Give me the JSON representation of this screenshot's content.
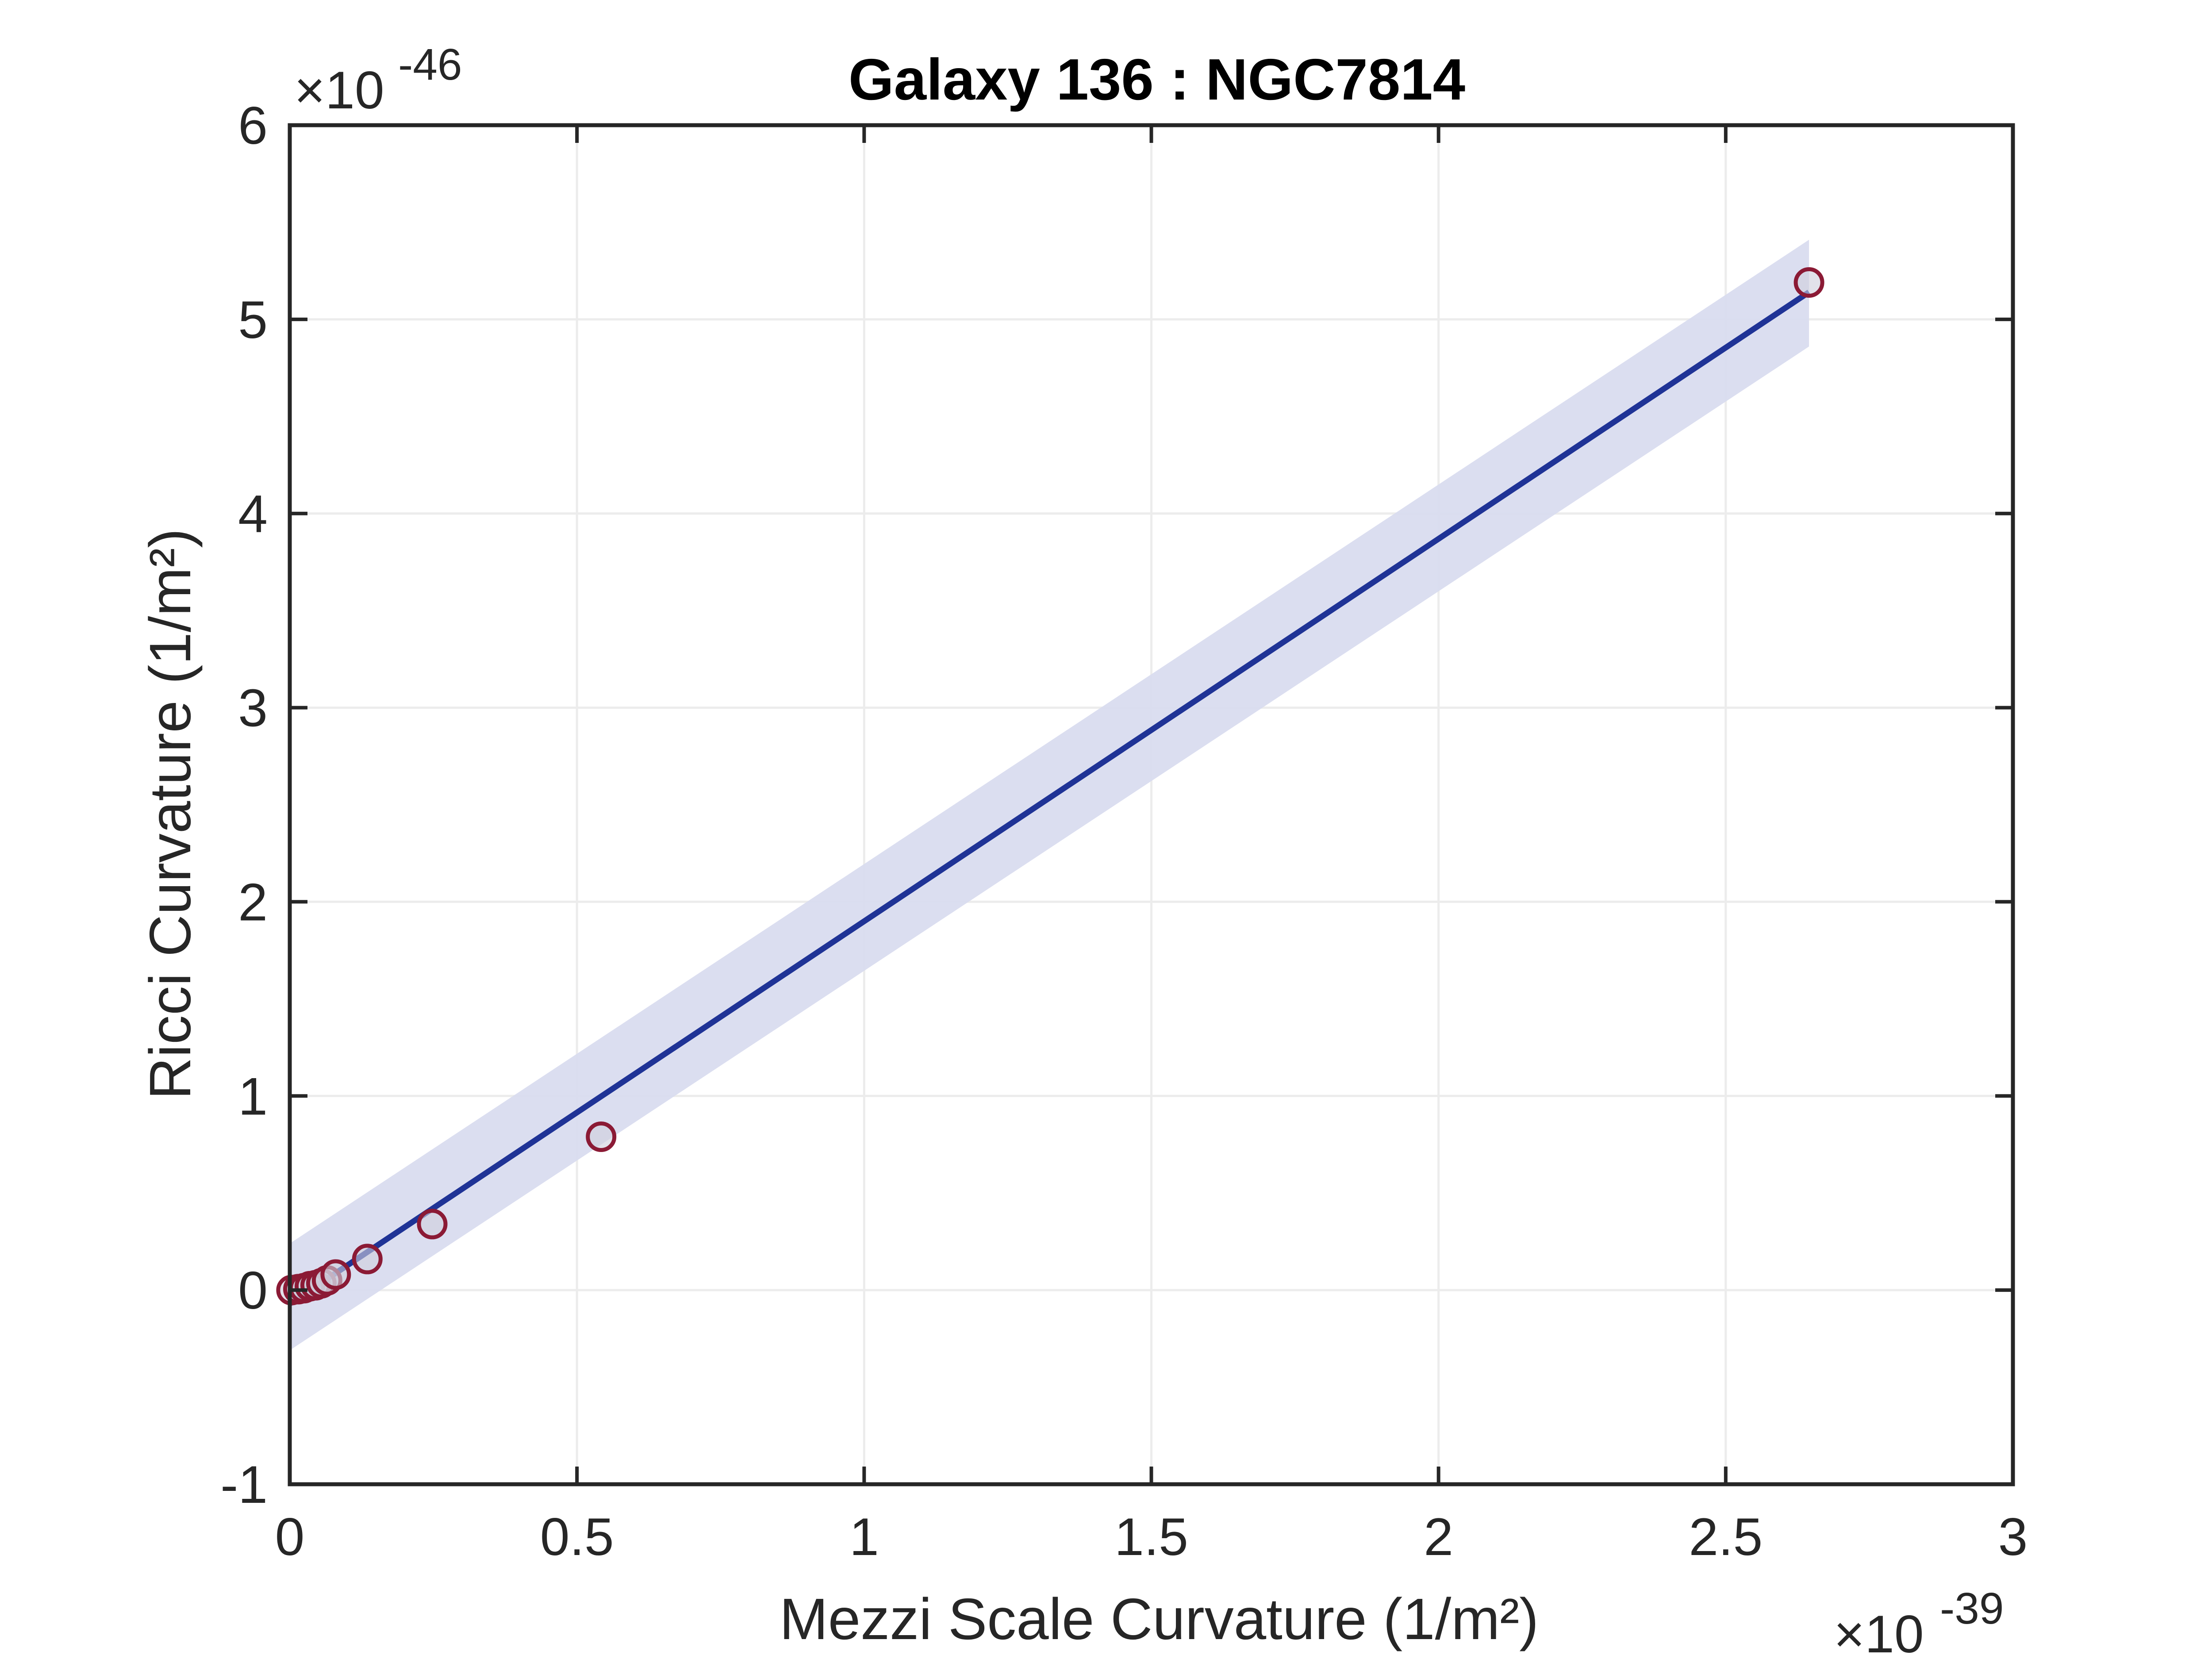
{
  "chart_data": {
    "type": "scatter",
    "title": "Galaxy 136 : NGC7814",
    "xlabel": "Mezzi Scale Curvature (1/m²)",
    "ylabel": "Ricci Curvature (1/m²)",
    "x_exponent": {
      "base": "×10",
      "power": "-39"
    },
    "y_exponent": {
      "base": "×10",
      "power": "-46"
    },
    "xlim": [
      0,
      3
    ],
    "ylim": [
      -1,
      6
    ],
    "xticks": [
      0,
      0.5,
      1,
      1.5,
      2,
      2.5,
      3
    ],
    "yticks": [
      -1,
      0,
      1,
      2,
      3,
      4,
      5,
      6
    ],
    "xtick_labels": [
      "0",
      "0.5",
      "1",
      "1.5",
      "2",
      "2.5",
      "3"
    ],
    "ytick_labels": [
      "-1",
      "0",
      "1",
      "2",
      "3",
      "4",
      "5",
      "6"
    ],
    "grid": true,
    "series": [
      {
        "kind": "points",
        "color": "#8b1a35",
        "x": [
          0.003,
          0.015,
          0.025,
          0.035,
          0.045,
          0.055,
          0.065,
          0.08,
          0.135,
          0.248,
          0.542,
          2.645
        ],
        "y": [
          0.0,
          0.005,
          0.01,
          0.02,
          0.025,
          0.035,
          0.05,
          0.08,
          0.16,
          0.34,
          0.79,
          5.19
        ]
      },
      {
        "kind": "fit-line",
        "color": "#1f3396",
        "x": [
          0.0,
          2.645
        ],
        "y": [
          -0.07,
          5.14
        ]
      },
      {
        "kind": "confidence-band",
        "color": "#d9dcef",
        "x": [
          0.0,
          2.645
        ],
        "upper": [
          0.24,
          5.41
        ],
        "lower": [
          -0.31,
          4.86
        ]
      }
    ]
  }
}
